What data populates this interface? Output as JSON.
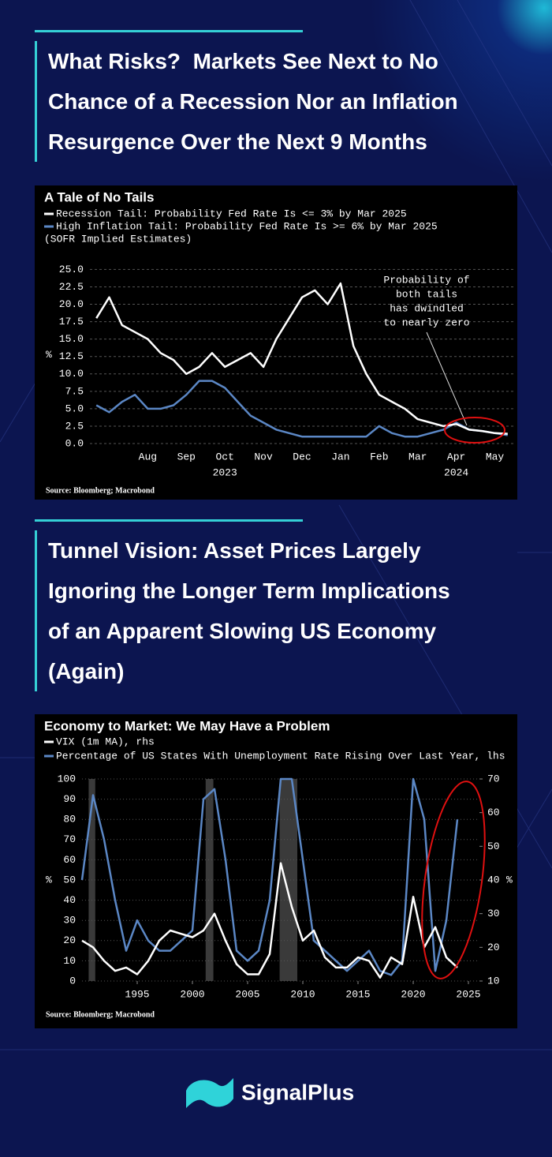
{
  "headings": [
    [
      "What Risks?  Markets See Next to No",
      "Chance of a Recession Nor an Inflation",
      "Resurgence Over the Next 9 Months"
    ],
    [
      "Tunnel Vision: Asset Prices Largely",
      "Ignoring the Longer Term Implications",
      "of an Apparent Slowing US Economy",
      "(Again)"
    ]
  ],
  "logo": "SignalPlus",
  "chart_data": [
    {
      "type": "line",
      "title": "A Tale of No Tails",
      "subtitle": "(SOFR Implied Estimates)",
      "categories": [
        null,
        null,
        null,
        null,
        "Aug",
        null,
        null,
        "Sep",
        null,
        null,
        "Oct",
        null,
        null,
        "Nov",
        null,
        null,
        "Dec",
        null,
        null,
        "Jan",
        null,
        null,
        "Feb",
        null,
        null,
        "Mar",
        null,
        null,
        "Apr",
        null,
        null,
        "May",
        null
      ],
      "year_labels": [
        "2023",
        "2024"
      ],
      "series": [
        {
          "name": "Recession Tail: Probability Fed Rate Is <= 3% by Mar 2025",
          "color": "#ffffff",
          "values": [
            18,
            21,
            17,
            16,
            15,
            13,
            12,
            10,
            11,
            13,
            11,
            12,
            13,
            11,
            15,
            18,
            21,
            22,
            20,
            23,
            14,
            10,
            7,
            6,
            5,
            3.5,
            3,
            2.5,
            2.8,
            2,
            1.8,
            1.5,
            1.4
          ]
        },
        {
          "name": "High Inflation Tail: Probability Fed Rate Is >= 6% by Mar 2025",
          "color": "#5b87c5",
          "values": [
            5.5,
            4.5,
            6,
            7,
            5,
            5,
            5.5,
            7,
            9,
            9,
            8,
            6,
            4,
            3,
            2,
            1.5,
            1,
            1,
            1,
            1,
            1,
            1,
            2.5,
            1.5,
            1,
            1,
            1.5,
            2,
            3,
            2,
            1.8,
            1.5,
            1.2
          ]
        }
      ],
      "ylim": [
        0,
        25.5
      ],
      "yticks": [
        {
          "value": 0,
          "label": "0.0"
        },
        2.5,
        {
          "value": 5,
          "label": "5.0"
        },
        7.5,
        {
          "value": 10,
          "label": "10.0"
        },
        12.5,
        {
          "value": 15,
          "label": "15.0"
        },
        17.5,
        {
          "value": 20,
          "label": "20.0"
        },
        22.5,
        {
          "value": 25,
          "label": "25.0"
        }
      ],
      "y_unit": "%",
      "grid": true,
      "annotation": [
        "Probability of",
        "both tails",
        "has dwindled",
        "to nearly zero"
      ],
      "source": "Source: Bloomberg; Macrobond"
    },
    {
      "type": "line",
      "title": "Economy to Market: We May Have a Problem",
      "x": [
        1990,
        1991,
        1992,
        1993,
        1994,
        1995,
        1996,
        1997,
        1998,
        1999,
        2000,
        2001,
        2002,
        2003,
        2004,
        2005,
        2006,
        2007,
        2008,
        2009,
        2010,
        2011,
        2012,
        2013,
        2014,
        2015,
        2016,
        2017,
        2018,
        2019,
        2020,
        2021,
        2022,
        2023,
        2024
      ],
      "series": [
        {
          "name": "VIX (1m MA), rhs",
          "color": "#ffffff",
          "axis": "y2",
          "values": [
            22,
            20,
            16,
            13,
            14,
            12,
            16,
            22,
            25,
            24,
            23,
            25,
            30,
            22,
            15,
            12,
            12,
            18,
            45,
            32,
            22,
            25,
            17,
            14,
            14,
            17,
            16,
            11,
            17,
            15,
            35,
            20,
            26,
            17,
            14
          ]
        },
        {
          "name": "Percentage of US States With Unemployment Rate Rising Over Last Year, lhs",
          "color": "#5b87c5",
          "values": [
            50,
            92,
            70,
            40,
            15,
            30,
            20,
            15,
            15,
            20,
            25,
            90,
            95,
            60,
            15,
            10,
            15,
            40,
            100,
            100,
            60,
            20,
            15,
            10,
            5,
            10,
            15,
            5,
            3,
            10,
            100,
            80,
            5,
            30,
            80
          ]
        }
      ],
      "shaded_periods": [
        [
          1990.6,
          1991.2
        ],
        [
          2001.2,
          2001.9
        ],
        [
          2007.9,
          2009.5
        ]
      ],
      "xlim": [
        1990,
        2026
      ],
      "xticks": [
        1995,
        2000,
        2005,
        2010,
        2015,
        2020,
        2025
      ],
      "ylim": [
        0,
        100
      ],
      "yticks": [
        0,
        10,
        20,
        30,
        40,
        50,
        60,
        70,
        80,
        90,
        100
      ],
      "y2lim": [
        10,
        70
      ],
      "y2ticks": [
        10,
        20,
        30,
        40,
        50,
        60,
        70
      ],
      "y_unit": "%",
      "y2_unit": "%",
      "grid": true,
      "source": "Source: Bloomberg; Macrobond"
    }
  ]
}
